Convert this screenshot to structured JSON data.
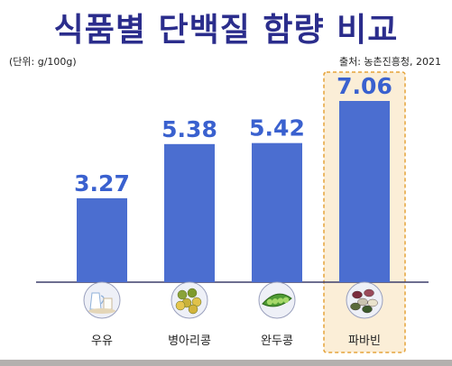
{
  "header": {
    "title": "식품별 단백질 함량 비교",
    "unit": "(단위: g/100g)",
    "source": "출처: 농촌진흥청, 2021"
  },
  "chart_data": {
    "type": "bar",
    "title": "식품별 단백질 함량 비교",
    "categories": [
      "우유",
      "병아리콩",
      "완두콩",
      "파바빈"
    ],
    "values": [
      3.27,
      5.38,
      5.42,
      7.06
    ],
    "value_labels": [
      "3.27",
      "5.38",
      "5.42",
      "7.06"
    ],
    "icons": [
      "milk-icon",
      "chickpea-icon",
      "pea-pod-icon",
      "fava-bean-icon"
    ],
    "ylim": [
      0,
      7.06
    ],
    "grid": false,
    "highlight_index": 3
  },
  "colors": {
    "title": "#2b2d8c",
    "bar": "#4b6ed0",
    "value_label": "#3a61cf",
    "highlight_fill": "#fbeed7",
    "highlight_border": "#e5a33a",
    "icon_bg": "#eef0f7"
  }
}
